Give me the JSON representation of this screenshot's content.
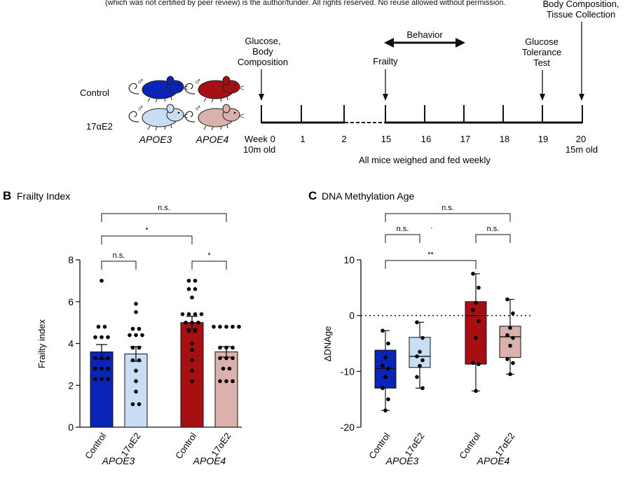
{
  "header_note": "(which was not certified by peer review) is the author/funder. All rights reserved. No reuse allowed without permission.",
  "panel_a": {
    "legend": {
      "control_label": "Control",
      "treatment_label": "17αE2",
      "genotype_1": "APOE3",
      "genotype_2": "APOE4",
      "male_symbol": "♂",
      "colors": {
        "apoe3_control": "#0a24b8",
        "apoe4_control": "#a80f12",
        "apoe3_17ae2": "#c9ddf5",
        "apoe4_17ae2": "#dbb1ad"
      }
    },
    "timeline": {
      "week_labels": [
        "Week 0",
        "1",
        "2",
        "15",
        "16",
        "17",
        "18",
        "19",
        "20"
      ],
      "start_age": "10m old",
      "end_age": "15m old",
      "footer": "All mice weighed and fed weekly",
      "events": {
        "week0": [
          "Glucose,",
          "Body",
          "Composition"
        ],
        "week15": [
          "Frailty"
        ],
        "behavior": [
          "Behavior"
        ],
        "week19": [
          "Glucose",
          "Tolerance",
          "Test"
        ],
        "week20": [
          "Body Composition,",
          "Tissue Collection"
        ]
      }
    }
  },
  "chart_data": [
    {
      "panel": "B",
      "type": "bar",
      "title": "Frailty Index",
      "ylabel": "Frailty index",
      "xlabel": "",
      "ylim": [
        0,
        8
      ],
      "yticks": [
        0,
        2,
        4,
        6,
        8
      ],
      "categories": [
        "Control",
        "17αE2",
        "Control",
        "17αE2"
      ],
      "groups": [
        "APOE3",
        "APOE4"
      ],
      "values": [
        3.6,
        3.5,
        5.0,
        3.6
      ],
      "sem": [
        0.35,
        0.35,
        0.3,
        0.25
      ],
      "colors": [
        "#0a24b8",
        "#c9ddf5",
        "#a80f12",
        "#dbb1ad"
      ],
      "points": [
        [
          7,
          4.8,
          4.8,
          4.3,
          4.3,
          4.3,
          3.3,
          3.3,
          3.3,
          2.8,
          2.8,
          2.8,
          2.3,
          2.3,
          2.3
        ],
        [
          5.9,
          5.5,
          4.7,
          4.7,
          4.4,
          4.4,
          4.4,
          3.8,
          3.8,
          3.2,
          3.2,
          2.7,
          2.2,
          1.7,
          1.1,
          1.1
        ],
        [
          7,
          7,
          6.6,
          6.6,
          6.2,
          5.4,
          5.4,
          5.4,
          5.4,
          5.0,
          5.0,
          5.0,
          4.6,
          4.6,
          4.0,
          3.7,
          3.2,
          2.7,
          2.2
        ],
        [
          4.8,
          4.8,
          4.8,
          4.8,
          4.8,
          3.8,
          3.8,
          3.8,
          3.3,
          3.3,
          3.3,
          2.8,
          2.8,
          2.2,
          2.2,
          2.2
        ]
      ],
      "annotations": [
        {
          "label": "n.s.",
          "from": 0,
          "to": 3,
          "level": 3
        },
        {
          "label": "*",
          "from": 0,
          "to": 2,
          "level": 2
        },
        {
          "label": "n.s.",
          "from": 0,
          "to": 1,
          "level": 1
        },
        {
          "label": "*",
          "from": 2,
          "to": 3,
          "level": 1
        }
      ]
    },
    {
      "panel": "C",
      "type": "box",
      "title": "DNA Methylation Age",
      "ylabel": "ΔDNAge",
      "xlabel": "",
      "ylim": [
        -20,
        10
      ],
      "yticks": [
        -20,
        -10,
        0,
        10
      ],
      "reference_line": 0,
      "categories": [
        "Control",
        "17αE2",
        "Control",
        "17αE2"
      ],
      "groups": [
        "APOE3",
        "APOE4"
      ],
      "colors": [
        "#0a24b8",
        "#c9ddf5",
        "#a80f12",
        "#dbb1ad"
      ],
      "boxes": [
        {
          "min": -17,
          "q1": -13,
          "median": -9.5,
          "q3": -6.2,
          "max": -2.7
        },
        {
          "min": -13,
          "q1": -9.3,
          "median": -7.3,
          "q3": -3.9,
          "max": -1.2
        },
        {
          "min": -13.5,
          "q1": -8.7,
          "median": 0,
          "q3": 2.5,
          "max": 7.5
        },
        {
          "min": -10.5,
          "q1": -7.5,
          "median": -3.8,
          "q3": -1.9,
          "max": 2.9
        }
      ],
      "points": [
        [
          -2.7,
          -5,
          -7.5,
          -9,
          -9.5,
          -11,
          -13,
          -15,
          -17
        ],
        [
          -1.2,
          -4,
          -6.5,
          -7.3,
          -8,
          -9,
          -11,
          -13
        ],
        [
          7.5,
          5,
          2.3,
          1,
          -1,
          -4,
          -8.5,
          -8.7,
          -13.5
        ],
        [
          2.9,
          0.4,
          -2.2,
          -3.5,
          -4,
          -5.4,
          -7.8,
          -8.5,
          -10.5
        ]
      ],
      "annotations": [
        {
          "label": "n.s.",
          "from": 0,
          "to": 3,
          "level": 3
        },
        {
          "label": "n.s.",
          "from": 0,
          "to": 1,
          "level": 2
        },
        {
          "label": "n.s.",
          "from": 2,
          "to": 3,
          "level": 2
        },
        {
          "label": "**",
          "from": 0,
          "to": 2,
          "level": 1
        }
      ]
    }
  ]
}
